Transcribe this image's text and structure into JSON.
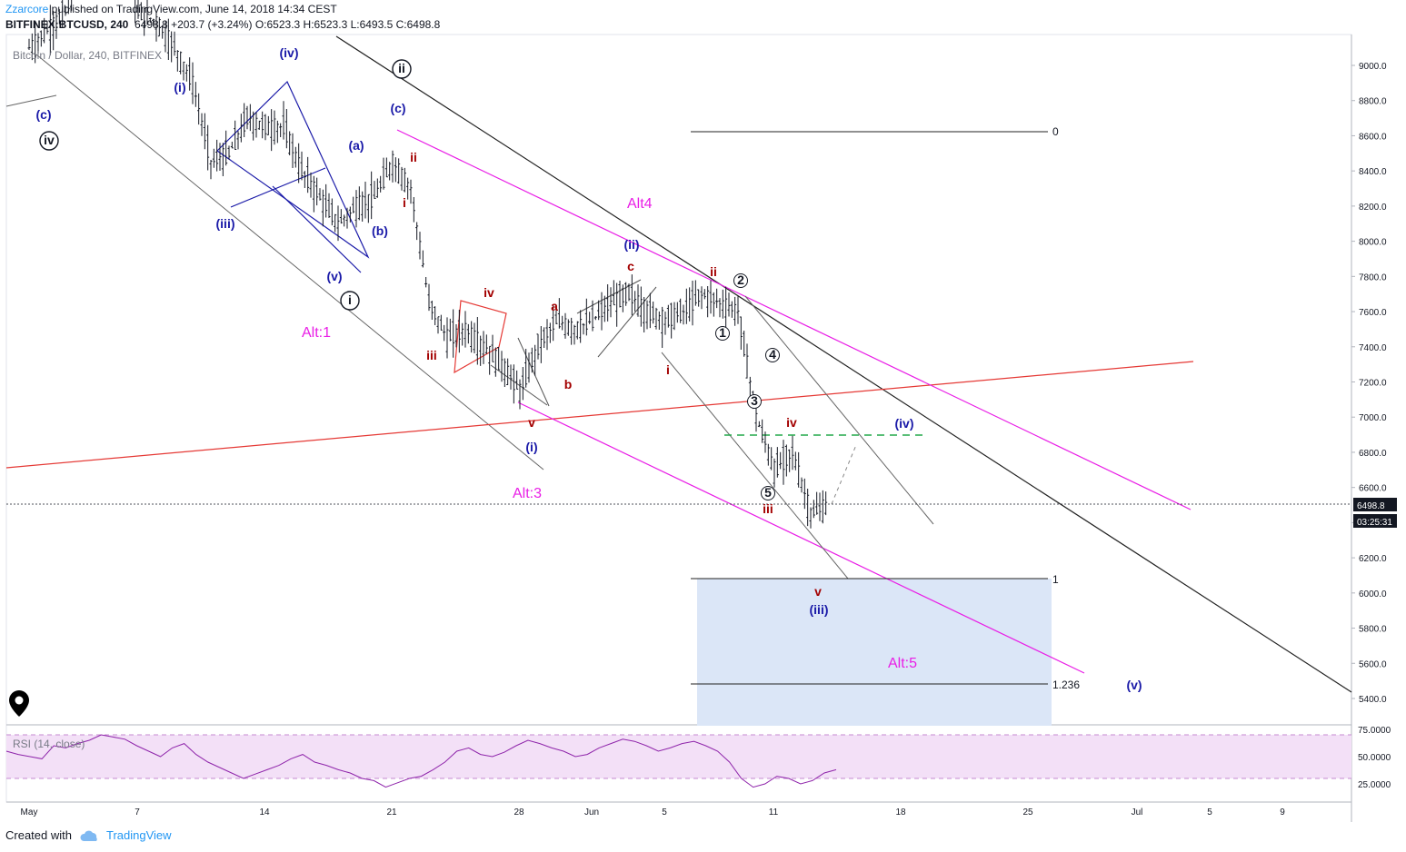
{
  "header": {
    "author": "Zzarcore",
    "published": " published on TradingView.com, June 14, 2018 14:34 CEST",
    "symbol": "BITFINEX:BTCUSD, 240",
    "price": "6498.8",
    "change": "+203.7 (+3.24%)",
    "ohlc": "O:6523.3 H:6523.3 L:6493.5 C:6498.8"
  },
  "legend": "Bitcoin / Dollar, 240, BITFINEX",
  "footer": {
    "created_with": "Created with",
    "brand": "TradingView"
  },
  "colors": {
    "up_down_bar": "#131722",
    "magenta": "#e91ee6",
    "red_trend": "#e53935",
    "blue_wave": "#1a1aa8",
    "dark_red_wave": "#a30000",
    "fib_zone": "#dbe6f7",
    "rsi_line": "#8e24aa",
    "rsi_band": "#f3e0f7",
    "green_dash": "#22a84a"
  },
  "chart_data": {
    "type": "line",
    "series": [
      {
        "x": [
          "2018-05-01",
          "2018-05-02",
          "2018-05-03",
          "2018-05-04",
          "2018-05-05",
          "2018-05-06",
          "2018-05-07",
          "2018-05-08",
          "2018-05-09",
          "2018-05-10",
          "2018-05-11",
          "2018-05-12",
          "2018-05-13",
          "2018-05-14",
          "2018-05-15",
          "2018-05-16",
          "2018-05-17",
          "2018-05-18",
          "2018-05-19",
          "2018-05-20",
          "2018-05-21",
          "2018-05-22",
          "2018-05-23",
          "2018-05-24",
          "2018-05-25",
          "2018-05-26",
          "2018-05-27",
          "2018-05-28",
          "2018-05-29",
          "2018-05-30",
          "2018-05-31",
          "2018-06-01",
          "2018-06-02",
          "2018-06-03",
          "2018-06-04",
          "2018-06-05",
          "2018-06-06",
          "2018-06-07",
          "2018-06-08",
          "2018-06-09",
          "2018-06-10",
          "2018-06-11",
          "2018-06-12",
          "2018-06-13",
          "2018-06-14"
        ],
        "values": [
          9100,
          9200,
          9300,
          9600,
          9700,
          9650,
          9300,
          9250,
          9100,
          8900,
          8450,
          8500,
          8700,
          8650,
          8650,
          8400,
          8250,
          8100,
          8200,
          8250,
          8450,
          8300,
          7650,
          7450,
          7500,
          7400,
          7300,
          7150,
          7400,
          7550,
          7500,
          7550,
          7650,
          7700,
          7600,
          7550,
          7600,
          7700,
          7650,
          7600,
          7000,
          6700,
          6800,
          6450,
          6500
        ]
      }
    ],
    "yaxis": {
      "ticks": [
        "9000.0",
        "8800.0",
        "8600.0",
        "8400.0",
        "8200.0",
        "8000.0",
        "7800.0",
        "7600.0",
        "7400.0",
        "7200.0",
        "7000.0",
        "6800.0",
        "6600.0",
        "6400.0",
        "6200.0",
        "6000.0",
        "5800.0",
        "5600.0",
        "5400.0"
      ]
    },
    "xaxis": {
      "ticks": [
        "May",
        "7",
        "14",
        "21",
        "28",
        "Jun",
        "5",
        "11",
        "18",
        "25",
        "Jul",
        "5",
        "9"
      ]
    },
    "price_label": "6498.8",
    "countdown": "03:25:31",
    "fib_levels": [
      {
        "label": "0",
        "value": 8630
      },
      {
        "label": "1",
        "value": 6080
      },
      {
        "label": "1.236",
        "value": 5480
      }
    ],
    "wave_labels": [
      "(c)",
      "iv",
      "(i)",
      "(iv)",
      "(iii)",
      "(v)",
      "i",
      "(a)",
      "(b)",
      "(c)",
      "ii",
      "i",
      "ii",
      "iii",
      "iv",
      "v",
      "a",
      "b",
      "c",
      "(ii)",
      "(i)",
      "ii",
      "2",
      "1",
      "i",
      "4",
      "3",
      "iv",
      "(iv)",
      "5",
      "iii",
      "v",
      "(iii)",
      "(v)"
    ],
    "alt_labels": [
      "Alt:1",
      "Alt:3",
      "Alt4",
      "Alt:5"
    ],
    "rsi": {
      "label": "RSI (14, close)",
      "ticks": [
        "75.0000",
        "50.0000",
        "25.0000"
      ],
      "band": [
        30,
        70
      ],
      "values": [
        55,
        52,
        50,
        48,
        60,
        58,
        62,
        65,
        70,
        68,
        66,
        60,
        55,
        50,
        58,
        62,
        52,
        45,
        40,
        35,
        30,
        34,
        38,
        42,
        48,
        52,
        45,
        42,
        38,
        35,
        30,
        28,
        22,
        26,
        30,
        32,
        38,
        45,
        55,
        58,
        52,
        50,
        54,
        60,
        65,
        62,
        58,
        55,
        50,
        52,
        58,
        62,
        66,
        64,
        60,
        55,
        58,
        62,
        64,
        60,
        55,
        45,
        30,
        22,
        25,
        32,
        30,
        25,
        28,
        35,
        38
      ]
    }
  }
}
